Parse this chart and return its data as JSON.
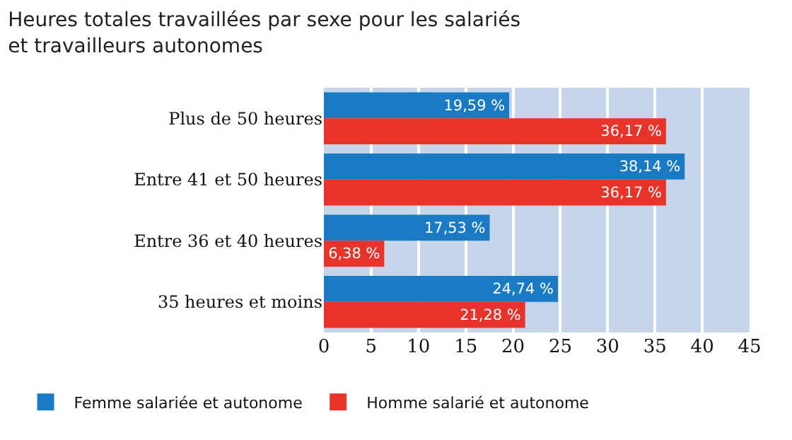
{
  "chart_data": {
    "type": "bar",
    "orientation": "horizontal",
    "title": "Heures totales travaillées par sexe pour les salariés\net travailleurs autonomes",
    "categories": [
      "Plus de 50 heures",
      "Entre 41 et 50 heures",
      "Entre 36 et 40 heures",
      "35 heures et moins"
    ],
    "series": [
      {
        "name": "Femme salariée et autonome",
        "color": "#1a7ac4",
        "values": [
          19.59,
          38.14,
          17.53,
          24.74
        ],
        "value_labels": [
          "19,59 %",
          "38,14 %",
          "17,53 %",
          "24,74 %"
        ]
      },
      {
        "name": "Homme salarié et autonome",
        "color": "#e8332a",
        "values": [
          36.17,
          36.17,
          6.38,
          21.28
        ],
        "value_labels": [
          "36,17 %",
          "36,17 %",
          "6,38 %",
          "21,28 %"
        ]
      }
    ],
    "xlim": [
      0,
      45
    ],
    "xticks": [
      0,
      5,
      10,
      15,
      20,
      25,
      30,
      35,
      40,
      45
    ],
    "grid": "x",
    "legend": "bottom"
  }
}
